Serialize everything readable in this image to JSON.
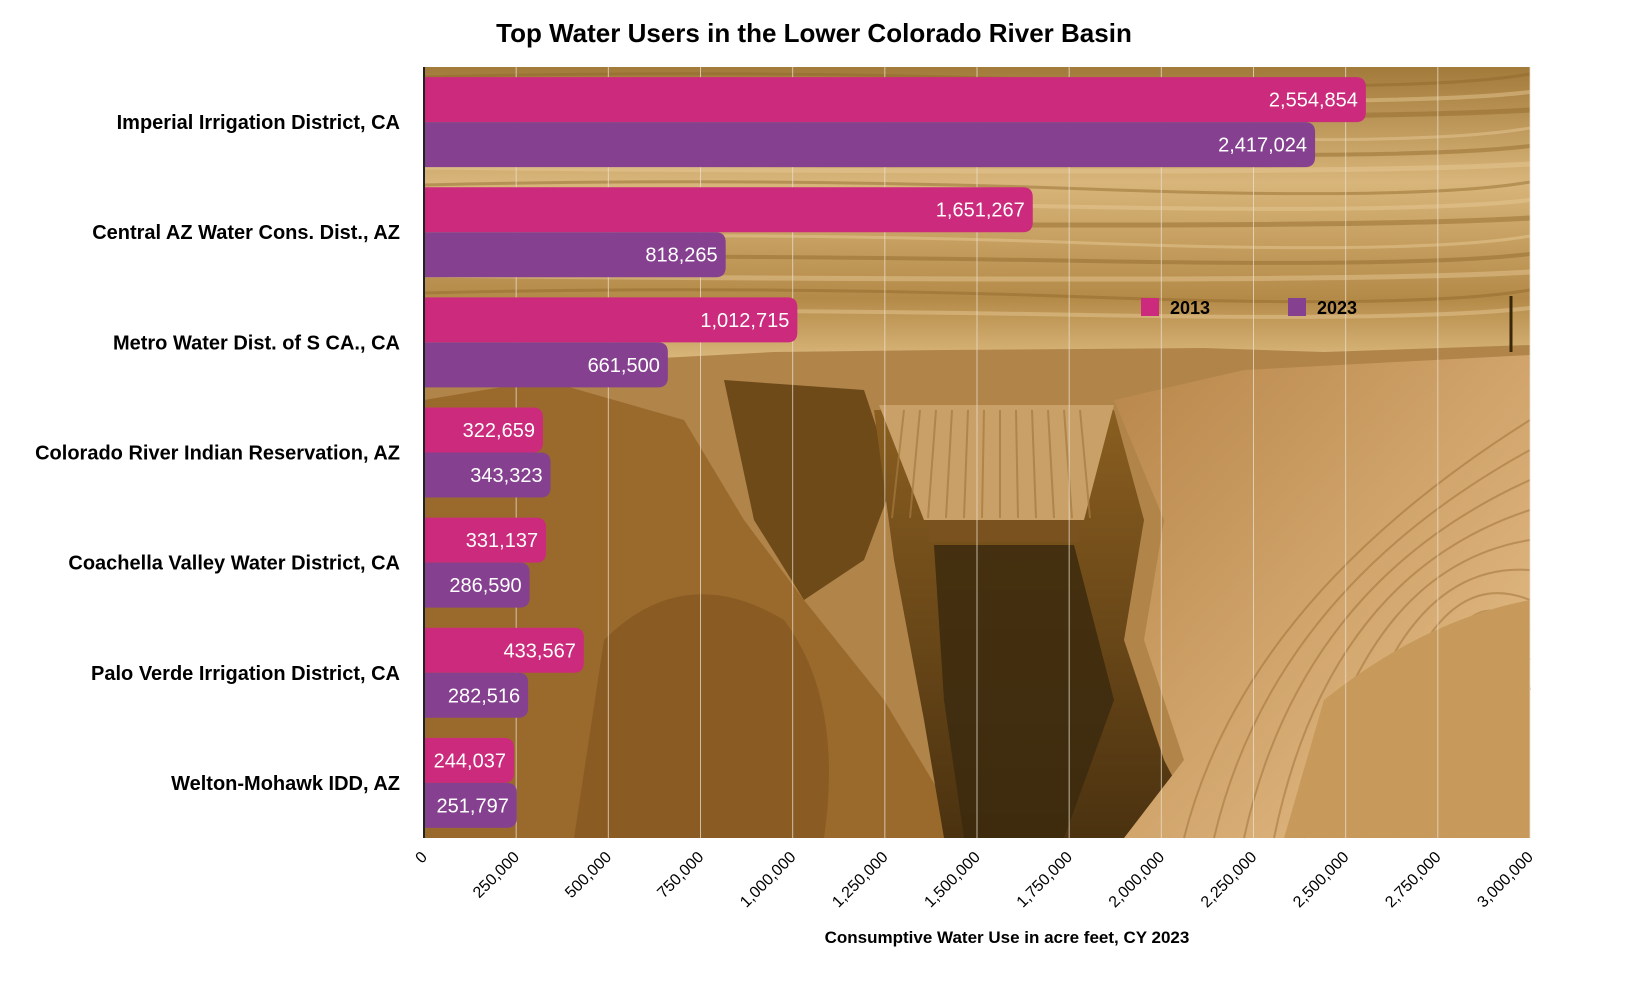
{
  "chart_data": {
    "type": "bar",
    "orientation": "horizontal",
    "title": "Top Water Users in the Lower Colorado River Basin",
    "xlabel": "Consumptive Water Use in acre feet, CY 2023",
    "ylabel": "",
    "xlim": [
      0,
      3000000
    ],
    "xticks": [
      0,
      250000,
      500000,
      750000,
      1000000,
      1250000,
      1500000,
      1750000,
      2000000,
      2250000,
      2500000,
      2750000,
      3000000
    ],
    "xtick_labels": [
      "0",
      "250,000",
      "500,000",
      "750,000",
      "1,000,000",
      "1,250,000",
      "1,500,000",
      "1,750,000",
      "2,000,000",
      "2,250,000",
      "2,500,000",
      "2,750,000",
      "3,000,000"
    ],
    "grid": "vertical",
    "legend_position": "upper-right",
    "background": "sepia photograph of a dam in a canyon",
    "categories": [
      "Imperial Irrigation District, CA",
      "Central AZ Water Cons. Dist., AZ",
      "Metro Water Dist. of S CA., CA",
      "Colorado River Indian Reservation, AZ",
      "Coachella Valley Water District, CA",
      "Palo Verde Irrigation District, CA",
      "Welton-Mohawk IDD, AZ"
    ],
    "series": [
      {
        "name": "2013",
        "color": "#CC2A7C",
        "values": [
          2554854,
          1651267,
          1012715,
          322659,
          331137,
          433567,
          244037
        ],
        "labels": [
          "2,554,854",
          "1,651,267",
          "1,012,715",
          "322,659",
          "331,137",
          "433,567",
          "244,037"
        ]
      },
      {
        "name": "2023",
        "color": "#85418F",
        "values": [
          2417024,
          818265,
          661500,
          343323,
          286590,
          282516,
          251797
        ],
        "labels": [
          "2,417,024",
          "818,265",
          "661,500",
          "343,323",
          "286,590",
          "282,516",
          "251,797"
        ]
      }
    ]
  }
}
